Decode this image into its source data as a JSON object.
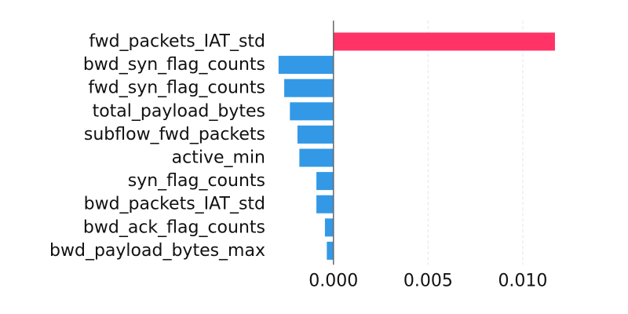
{
  "chart_data": {
    "type": "bar",
    "orientation": "horizontal",
    "title": "",
    "xlabel": "",
    "ylabel": "",
    "categories": [
      "fwd_packets_IAT_std",
      "bwd_syn_flag_counts",
      "fwd_syn_flag_counts",
      "total_payload_bytes",
      "subflow_fwd_packets",
      "active_min",
      "syn_flag_counts",
      "bwd_packets_IAT_std",
      "bwd_ack_flag_counts",
      "bwd_payload_bytes_max"
    ],
    "values": [
      0.0117,
      -0.0029,
      -0.0026,
      -0.0023,
      -0.0019,
      -0.0018,
      -0.0009,
      -0.0009,
      -0.00045,
      -0.00035
    ],
    "xlim": [
      -0.0031,
      0.0139
    ],
    "xticks": [
      0.0,
      0.005,
      0.01
    ],
    "xtick_labels": [
      "0.000",
      "0.005",
      "0.010"
    ],
    "grid": "vertical dashed",
    "legend": "none",
    "colors": {
      "positive": "#ff3366",
      "negative": "#3399e6",
      "axis": "#666666",
      "grid": "#e5e5e5"
    }
  }
}
